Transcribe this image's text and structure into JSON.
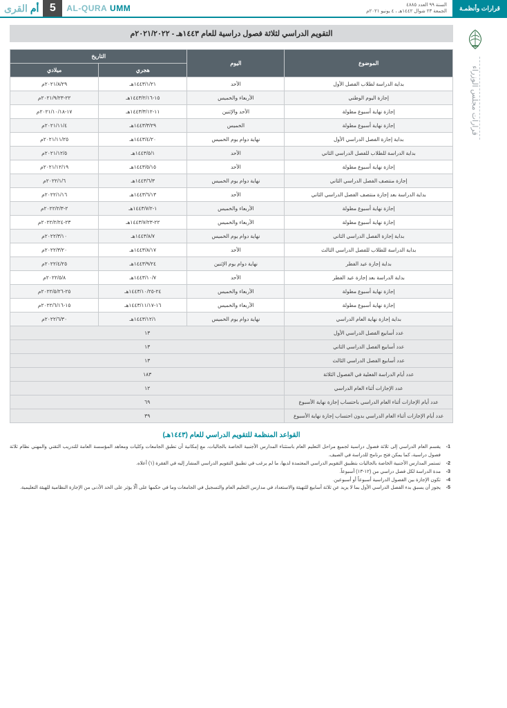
{
  "header": {
    "badge": "قرارات وأنظمـة",
    "issue_line1": "السنة ٩٩ العدد ٤٨٨٥",
    "issue_line2": "الجمعة ٢٣ شوال ١٤٤٢هـ ، ٤ يونيو ٢٠٢١م",
    "page_number": "5",
    "brand_en_1": "UMM",
    "brand_en_2": "AL-QURA",
    "brand_ar_1": "أم",
    "brand_ar_2": "القرى"
  },
  "sidebar": {
    "vertical_text": "قرارات مجلس الوزراء"
  },
  "title": "التقويم الدراسي لثلاثة فصول دراسية للعام ١٤٤٣هـ - ٢٠٢١/٢٠٢٢م",
  "columns": {
    "subject": "الموضوع",
    "day": "اليوم",
    "date_group": "التاريخ",
    "hijri": "هجري",
    "gregorian": "ميلادي"
  },
  "rows": [
    {
      "subject": "بداية الدراسة لطلاب الفصل الأول",
      "day": "الأحد",
      "hijri": "١٤٤٣/١/٢١هـ",
      "greg": "٢٠٢١/٨/٢٩م"
    },
    {
      "subject": "إجازة اليوم الوطني",
      "day": "الأربعاء والخميس",
      "hijri": "١٥-١٤٤٣/٢/١٦هـ",
      "greg": "٢٢-٢٠٢١/٩/٢٣م"
    },
    {
      "subject": "إجازة نهاية أسبوع مطولة",
      "day": "الأحد والإثنين",
      "hijri": "١١-١٤٤٣/٣/١٢هـ",
      "greg": "١٧-٢٠٢١/١٠/١٨م"
    },
    {
      "subject": "إجازة نهاية أسبوع مطولة",
      "day": "الخميس",
      "hijri": "١٤٤٣/٣/٢٩هـ",
      "greg": "٢٠٢١/١١/٤م"
    },
    {
      "subject": "بداية إجازة الفصل الدراسي الأول",
      "day": "نهاية دوام يوم الخميس",
      "hijri": "١٤٤٣/٤/٢٠هـ",
      "greg": "٢٠٢١/١١/٢٥م"
    },
    {
      "subject": "بداية الدراسة للطلاب للفصل الدراسي الثاني",
      "day": "الأحد",
      "hijri": "١٤٤٣/٥/١هـ",
      "greg": "٢٠٢١/١٢/٥م"
    },
    {
      "subject": "إجازة نهاية أسبوع مطولة",
      "day": "الأحد",
      "hijri": "١٤٤٣/٥/١٥هـ",
      "greg": "٢٠٢١/١٢/١٩م"
    },
    {
      "subject": "إجازة منتصف الفصل الدراسي الثاني",
      "day": "نهاية دوام يوم الخميس",
      "hijri": "١٤٤٣/٦/٣هـ",
      "greg": "٢٠٢٢/١/٦م"
    },
    {
      "subject": "بداية الدراسة بعد إجازة منتصف الفصل الدراسي الثاني",
      "day": "الأحد",
      "hijri": "١٤٤٣/٦/١٣هـ",
      "greg": "٢٠٢٢/١/١٦م"
    },
    {
      "subject": "إجازة نهاية أسبوع مطولة",
      "day": "الأربعاء والخميس",
      "hijri": "١-١٤٤٣/٧/٢هـ",
      "greg": "٢-٢٠٢٢/٢/٣م"
    },
    {
      "subject": "إجازة نهاية أسبوع مطولة",
      "day": "الأربعاء والخميس",
      "hijri": "٢٢-١٤٤٣/٧/٢٣هـ",
      "greg": "٢٣-٢٠٢٢/٢/٢٤م"
    },
    {
      "subject": "بداية إجازة الفصل الدراسي الثاني",
      "day": "نهاية دوام يوم الخميس",
      "hijri": "١٤٤٣/٨/٧هـ",
      "greg": "٢٠٢٢/٣/١٠م"
    },
    {
      "subject": "بداية الدراسة للطلاب للفصل الدراسي الثالث",
      "day": "الأحد",
      "hijri": "١٤٤٣/٨/١٧هـ",
      "greg": "٢٠٢٢/٣/٢٠م"
    },
    {
      "subject": "بداية إجازة عيد الفطر",
      "day": "نهاية دوام يوم الإثنين",
      "hijri": "١٤٤٣/٩/٢٤هـ",
      "greg": "٢٠٢٢/٤/٢٥م"
    },
    {
      "subject": "بداية الدراسة بعد إجازة عيد الفطر",
      "day": "الأحد",
      "hijri": "١٤٤٣/١٠/٧هـ",
      "greg": "٢٠٢٢/٥/٨م"
    },
    {
      "subject": "إجازة نهاية أسبوع مطولة",
      "day": "الأربعاء والخميس",
      "hijri": "٢٤-١٤٤٣/١٠/٢٥هـ",
      "greg": "٢٥-٢٠٢٢/٥/٢٦م"
    },
    {
      "subject": "إجازة نهاية أسبوع مطولة",
      "day": "الأربعاء والخميس",
      "hijri": "١٦-١٤٤٣/١١/١٧هـ",
      "greg": "١٥-٢٠٢٢/٦/١٦م"
    },
    {
      "subject": "بداية إجازة نهاية العام الدراسي",
      "day": "نهاية دوام يوم الخميس",
      "hijri": "١٤٤٣/١٢/١هـ",
      "greg": "٢٠٢٢/٦/٣٠م"
    }
  ],
  "summary": [
    {
      "subject": "عدد أسابيع الفصل الدراسي الأول",
      "value": "١٣"
    },
    {
      "subject": "عدد أسابيع الفصل الدراسي الثاني",
      "value": "١٣"
    },
    {
      "subject": "عدد أسابيع الفصل الدراسي الثالث",
      "value": "١٣"
    },
    {
      "subject": "عدد أيام الدراسة الفعلية في الفصول الثلاثة",
      "value": "١٨٣"
    },
    {
      "subject": "عدد الإجازات أثناء العام الدراسي",
      "value": "١٢"
    },
    {
      "subject": "عدد أيام الإجازات أثناء العام الدراسي باحتساب إجازة نهاية الأسبوع",
      "value": "٦٩"
    },
    {
      "subject": "عدد أيام الإجازات أثناء العام الدراسي بدون احتساب إجازة نهاية الأسبوع",
      "value": "٣٩"
    }
  ],
  "rules_title": "القواعد المنظمة للتقويم الدراسي للعام (١٤٤٣هـ)",
  "rules": [
    "يقسم العام الدراسي إلى ثلاثة فصول دراسية لجميع مراحل التعليم العام باستثناء المدارس الأجنبية الخاصة بالجاليات، مع إمكانية أن تطبق الجامعات وكليات ومعاهد المؤسسة العامة للتدريب التقني والمهني نظام ثلاثة فصول دراسية، كما يمكن فتح برنامج للدراسة في الصيف.",
    "تستمر المدارس الأجنبية الخاصة بالجاليات بتطبيق التقويم الدراسي المعتمدة لديها، ما لم يرغب في تطبيق التقويم الدراسي المشار إليه في الفقرة (١) أعلاه.",
    "مدة الدراسة لكل فصل دراسي من (١٢-١٣) أسبوعاً.",
    "تكون الإجازة بين الفصول الدراسية أسبوعاً أو أسبوعين.",
    "يجوز أن يسبق بدء الفصل الدراسي الأول بما لا يزيد عن ثلاثة أسابيع للتهيئة والاستعداد في مدارس التعليم العام والتسجيل في الجامعات وما في حكمها على ألّا يؤثر على الحد الأدنى من الإجازة النظامية للهيئة التعليمية."
  ],
  "style": {
    "accent": "#008a9b",
    "header_bg": "#57636b",
    "title_bg": "#d7d9db",
    "row_alt": "#f2f3f4",
    "summary_bg": "#e8e9ea",
    "border": "#c8cbce"
  }
}
